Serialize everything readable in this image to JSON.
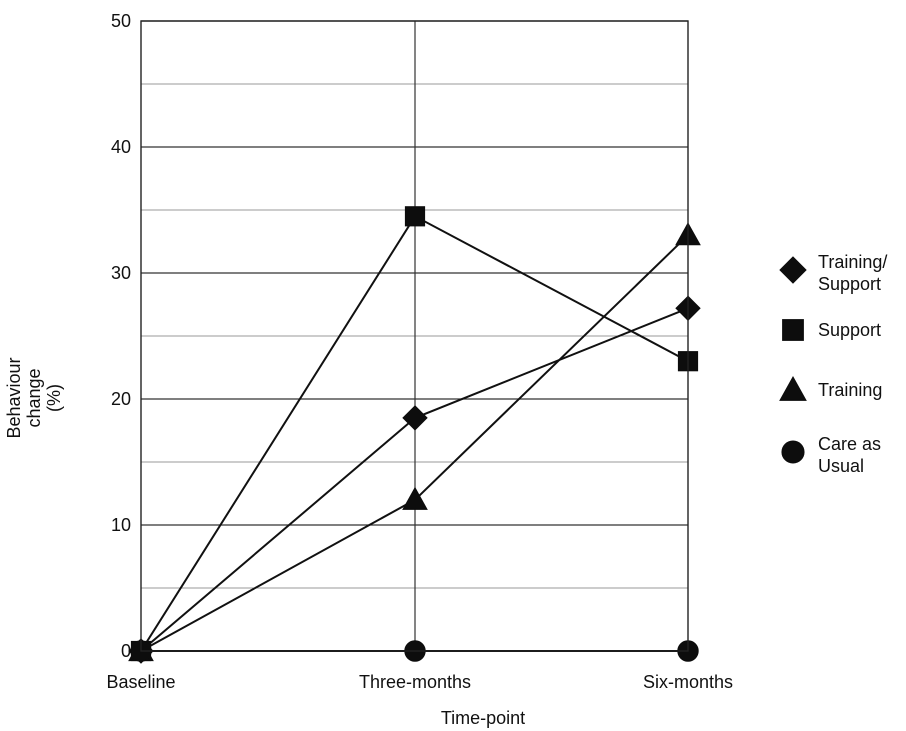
{
  "chart_data": {
    "type": "line",
    "title": "",
    "xlabel": "Time-point",
    "ylabel_lines": [
      "Behaviour",
      "change",
      "(%)"
    ],
    "categories": [
      "Baseline",
      "Three-months",
      "Six-months"
    ],
    "ylim": [
      0,
      50
    ],
    "yticks": [
      0,
      10,
      20,
      30,
      40,
      50
    ],
    "minor_grid_step": 5,
    "grid": true,
    "legend_position": "right",
    "series": [
      {
        "name": "Training/ Support",
        "name_lines": [
          "Training/",
          "Support"
        ],
        "marker": "diamond",
        "values": [
          0,
          18.5,
          27.2
        ]
      },
      {
        "name": "Support",
        "name_lines": [
          "Support"
        ],
        "marker": "square",
        "values": [
          0,
          34.5,
          23
        ]
      },
      {
        "name": "Training",
        "name_lines": [
          "Training"
        ],
        "marker": "triangle",
        "values": [
          0,
          12,
          33
        ]
      },
      {
        "name": "Care as Usual",
        "name_lines": [
          "Care as",
          "Usual"
        ],
        "marker": "circle",
        "values": [
          0,
          0,
          0
        ]
      }
    ]
  }
}
